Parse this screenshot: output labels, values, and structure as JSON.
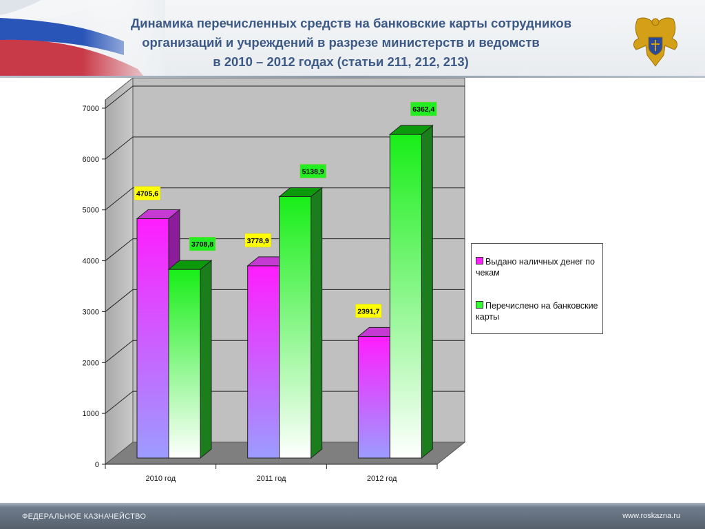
{
  "header": {
    "title_lines": [
      "Динамика перечисленных средств на банковские карты сотрудников",
      "организаций и учреждений в разрезе министерств и ведомств",
      "в 2010 – 2012 годах (статьи 211, 212, 213)"
    ]
  },
  "chart_data": {
    "type": "bar",
    "categories": [
      "2010 год",
      "2011 год",
      "2012 год"
    ],
    "series": [
      {
        "name": "Выдано наличных денег по чекам",
        "values": [
          4705.6,
          3778.9,
          2391.7
        ],
        "labels": [
          "4705,6",
          "3778,9",
          "2391,7"
        ],
        "color": "#ff1dff",
        "label_bg": "#ffff00"
      },
      {
        "name": "Перечислено на банковские карты",
        "values": [
          3708.8,
          5138.9,
          6362.4
        ],
        "labels": [
          "3708,8",
          "5138,9",
          "6362,4"
        ],
        "color": "#22ee22",
        "label_bg": "#22ee22"
      }
    ],
    "ylim": [
      0,
      7000
    ],
    "yticks": [
      "0",
      "1000",
      "2000",
      "3000",
      "4000",
      "5000",
      "6000",
      "7000"
    ],
    "grid": true,
    "legend_position": "right",
    "title": "",
    "xlabel": "",
    "ylabel": ""
  },
  "legend": {
    "items": [
      {
        "label": "Выдано наличных денег по чекам",
        "color": "#ff22ff"
      },
      {
        "label": "Перечислено на банковские карты",
        "color": "#33ff33"
      }
    ]
  },
  "footer": {
    "left": "ФЕДЕРАЛЬНОЕ КАЗНАЧЕЙСТВО",
    "right": "www.roskazna.ru"
  }
}
